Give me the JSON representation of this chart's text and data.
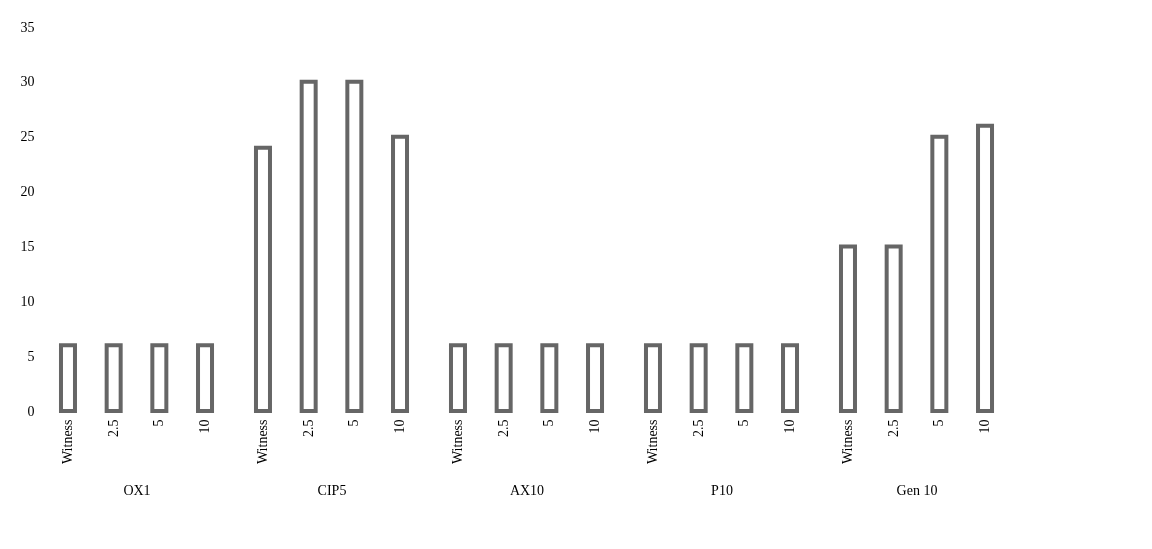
{
  "chart_data": [
    {
      "type": "bar",
      "xlabel": "OX1",
      "categories": [
        "Witness",
        "2.5",
        "5",
        "10"
      ],
      "series": [
        {
          "color": "#666666",
          "values": [
            6,
            6,
            6,
            6
          ]
        }
      ],
      "ylim": [
        0,
        35
      ],
      "yticks": [
        0,
        5,
        10,
        15,
        20,
        25,
        30,
        35
      ],
      "grid": false
    },
    {
      "type": "bar",
      "xlabel": "CIP5",
      "categories": [
        "Witness",
        "2.5",
        "5",
        "10"
      ],
      "series": [
        {
          "color": "#666666",
          "values": [
            24,
            30,
            30,
            25
          ]
        }
      ],
      "ylim": [
        0,
        35
      ],
      "yticks": [
        0,
        5,
        10,
        15,
        20,
        25,
        30,
        35
      ],
      "grid": false,
      "tick_labels": "x"
    },
    {
      "type": "bar",
      "xlabel": "AX10",
      "categories": [
        "Witness",
        "2.5",
        "5",
        "10"
      ],
      "series": [
        {
          "color": "#666666",
          "values": [
            6,
            6,
            6,
            6
          ]
        }
      ],
      "ylim": [
        0,
        35
      ],
      "yticks": [
        0,
        5,
        10,
        15,
        20,
        25,
        30,
        35
      ],
      "grid": false,
      "tick_labels": "x"
    },
    {
      "type": "bar",
      "xlabel": "P10",
      "categories": [
        "Witness",
        "2.5",
        "5",
        "10"
      ],
      "series": [
        {
          "color": "#666666",
          "values": [
            6,
            6,
            6,
            6
          ]
        }
      ],
      "ylim": [
        0,
        35
      ],
      "yticks": [
        0,
        5,
        10,
        15,
        20,
        25,
        30,
        35
      ],
      "grid": false,
      "tick_labels": "x"
    },
    {
      "type": "bar",
      "xlabel": "Gen 10",
      "categories": [
        "Witness",
        "2.5",
        "5",
        "10"
      ],
      "series": [
        {
          "color": "#666666",
          "values": [
            15,
            15,
            25,
            26
          ]
        }
      ],
      "ylim": [
        0,
        35
      ],
      "yticks": [
        0,
        5,
        10,
        15,
        20,
        25,
        30,
        35
      ],
      "grid": false,
      "tick_labels": "x"
    }
  ]
}
